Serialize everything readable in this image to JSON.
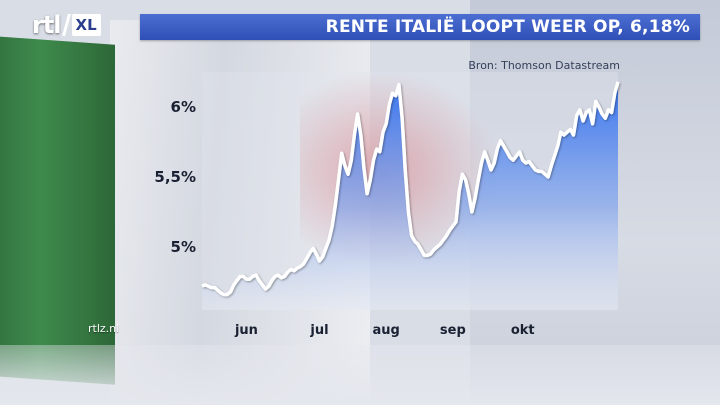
{
  "logo": {
    "left": "rtl",
    "right": "XL"
  },
  "header": {
    "title": "RENTE ITALIË LOOPT WEER OP, 6,18%"
  },
  "source": "Bron: Thomson Datastream",
  "website": "rtlz.nl",
  "colors": {
    "title_bar": "#3a5bc4",
    "line": "#ffffff",
    "area_top": "#2f6ff0",
    "area_bottom": "#e6ebf5"
  },
  "chart_data": {
    "type": "area",
    "title": "RENTE ITALIË LOOPT WEER OP, 6,18%",
    "ylabel": "",
    "y_unit": "%",
    "ylim": [
      4.55,
      6.25
    ],
    "y_ticks": [
      {
        "value": 6.0,
        "label": "6%"
      },
      {
        "value": 5.5,
        "label": "5,5%"
      },
      {
        "value": 5.0,
        "label": "5%"
      }
    ],
    "x_ticks": [
      {
        "label": "jun",
        "index": 14
      },
      {
        "label": "jul",
        "index": 37
      },
      {
        "label": "aug",
        "index": 58
      },
      {
        "label": "sep",
        "index": 79
      },
      {
        "label": "okt",
        "index": 101
      }
    ],
    "grid": false,
    "legend": "none",
    "series": [
      {
        "values": [
          4.72,
          4.73,
          4.72,
          4.71,
          4.71,
          4.69,
          4.67,
          4.66,
          4.66,
          4.68,
          4.73,
          4.76,
          4.79,
          4.79,
          4.77,
          4.77,
          4.79,
          4.8,
          4.76,
          4.73,
          4.7,
          4.72,
          4.76,
          4.79,
          4.8,
          4.78,
          4.79,
          4.82,
          4.84,
          4.83,
          4.85,
          4.86,
          4.88,
          4.92,
          4.96,
          4.99,
          4.95,
          4.9,
          4.93,
          4.99,
          5.05,
          5.15,
          5.3,
          5.48,
          5.67,
          5.58,
          5.52,
          5.62,
          5.8,
          5.95,
          5.8,
          5.56,
          5.38,
          5.48,
          5.62,
          5.7,
          5.68,
          5.82,
          5.88,
          6.02,
          6.1,
          6.08,
          6.16,
          5.92,
          5.55,
          5.25,
          5.08,
          5.04,
          5.02,
          4.98,
          4.94,
          4.94,
          4.95,
          4.98,
          5.0,
          5.02,
          5.05,
          5.08,
          5.12,
          5.15,
          5.18,
          5.4,
          5.52,
          5.48,
          5.38,
          5.25,
          5.35,
          5.48,
          5.6,
          5.68,
          5.62,
          5.55,
          5.6,
          5.7,
          5.76,
          5.72,
          5.68,
          5.64,
          5.62,
          5.65,
          5.68,
          5.62,
          5.6,
          5.61,
          5.58,
          5.55,
          5.54,
          5.54,
          5.52,
          5.5,
          5.58,
          5.65,
          5.72,
          5.82,
          5.8,
          5.82,
          5.84,
          5.8,
          5.94,
          5.98,
          5.9,
          5.96,
          5.98,
          5.88,
          6.04,
          6.0,
          5.95,
          5.92,
          5.98,
          5.96,
          6.1,
          6.18
        ]
      }
    ]
  }
}
